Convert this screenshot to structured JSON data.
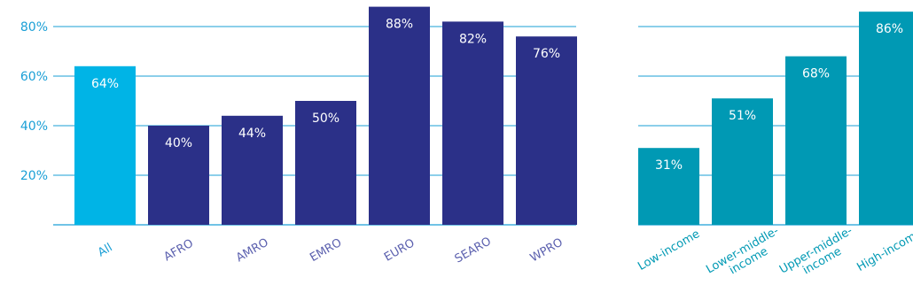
{
  "chart_data": [
    {
      "type": "bar",
      "panel": "regions",
      "categories": [
        "All",
        "AFRO",
        "AMRO",
        "EMRO",
        "EURO",
        "SEARO",
        "WPRO"
      ],
      "values": [
        64,
        40,
        44,
        50,
        88,
        82,
        76
      ],
      "value_labels": [
        "64%",
        "40%",
        "44%",
        "50%",
        "88%",
        "82%",
        "76%"
      ],
      "yticks": [
        20,
        40,
        60,
        80
      ],
      "ytick_labels": [
        "20%",
        "40%",
        "60%",
        "80%"
      ],
      "ylim": [
        0,
        88
      ],
      "grid": true,
      "colors": [
        "#00b4e6",
        "#2b3088",
        "#2b3088",
        "#2b3088",
        "#2b3088",
        "#2b3088",
        "#2b3088"
      ],
      "category_label_colors": [
        "#1a9fd6",
        "#5a5fae",
        "#5a5fae",
        "#5a5fae",
        "#5a5fae",
        "#5a5fae",
        "#5a5fae"
      ]
    },
    {
      "type": "bar",
      "panel": "income",
      "categories": [
        "Low-income",
        "Lower-middle-\nincome",
        "Upper-middle-\nincome",
        "High-income"
      ],
      "values": [
        31,
        51,
        68,
        86
      ],
      "value_labels": [
        "31%",
        "51%",
        "68%",
        "86%"
      ],
      "yticks": [
        20,
        40,
        60,
        80
      ],
      "ylim": [
        0,
        88
      ],
      "grid": true,
      "colors": [
        "#0099b4",
        "#0099b4",
        "#0099b4",
        "#0099b4"
      ],
      "category_label_colors": [
        "#0099b4",
        "#0099b4",
        "#0099b4",
        "#0099b4"
      ]
    }
  ],
  "style": {
    "axis_color": "#1a9fd6",
    "grid_color": "#1a9fd6",
    "ytick_color": "#1a9fd6",
    "value_label_color": "#ffffff"
  }
}
